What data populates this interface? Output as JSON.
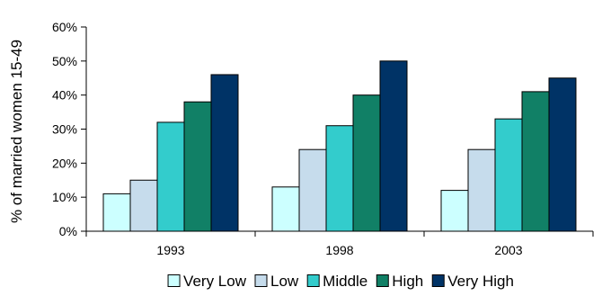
{
  "chart_data": {
    "type": "bar",
    "ylabel": "% of married women 15-49",
    "ylim": [
      0,
      60
    ],
    "y_ticks": [
      "0%",
      "10%",
      "20%",
      "30%",
      "40%",
      "50%",
      "60%"
    ],
    "y_tick_values": [
      0,
      10,
      20,
      30,
      40,
      50,
      60
    ],
    "categories": [
      "1993",
      "1998",
      "2003"
    ],
    "grid": false,
    "legend_position": "bottom",
    "series": [
      {
        "name": "Very Low",
        "color": "#ccffff",
        "values": [
          11,
          13,
          12
        ]
      },
      {
        "name": "Low",
        "color": "#c6dcec",
        "values": [
          15,
          24,
          24
        ]
      },
      {
        "name": "Middle",
        "color": "#33cccc",
        "values": [
          32,
          31,
          33
        ]
      },
      {
        "name": "High",
        "color": "#118066",
        "values": [
          38,
          40,
          41
        ]
      },
      {
        "name": "Very High",
        "color": "#003366",
        "values": [
          46,
          50,
          45
        ]
      }
    ]
  }
}
